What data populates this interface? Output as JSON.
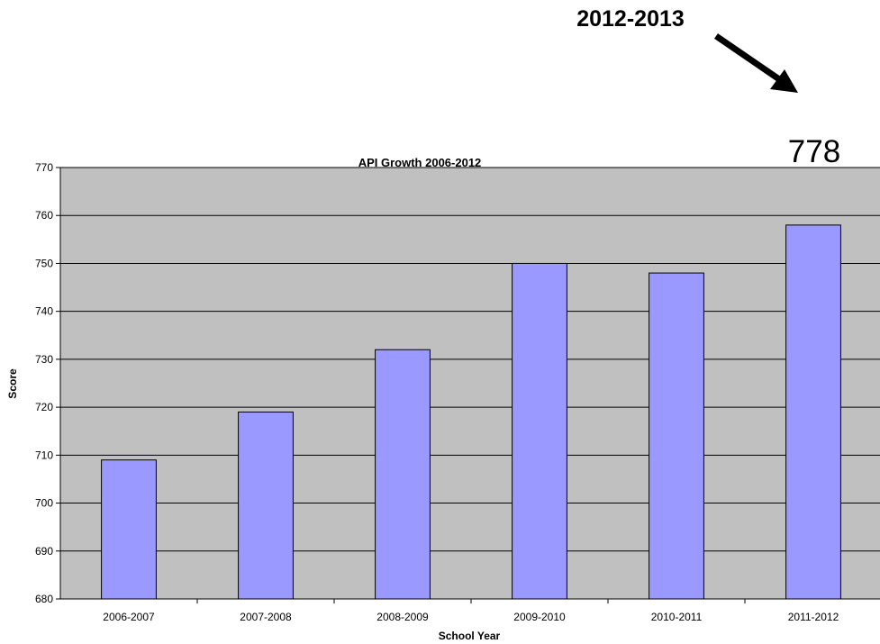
{
  "chart_data": {
    "type": "bar",
    "title": "API Growth 2006-2012",
    "xlabel": "School Year",
    "ylabel": "Score",
    "categories": [
      "2006-2007",
      "2007-2008",
      "2008-2009",
      "2009-2010",
      "2010-2011",
      "2011-2012"
    ],
    "values": [
      709,
      719,
      732,
      750,
      748,
      758
    ],
    "ylim": [
      680,
      770
    ],
    "yticks": [
      "680",
      "690",
      "700",
      "710",
      "720",
      "730",
      "740",
      "750",
      "760",
      "770"
    ],
    "grid": true,
    "legend": "none",
    "colors": {
      "bar": "#9999ff",
      "plot_background": "#c0c0c0",
      "gridline": "#000000"
    },
    "annotation": {
      "label": "2012-2013",
      "value": "778"
    }
  }
}
